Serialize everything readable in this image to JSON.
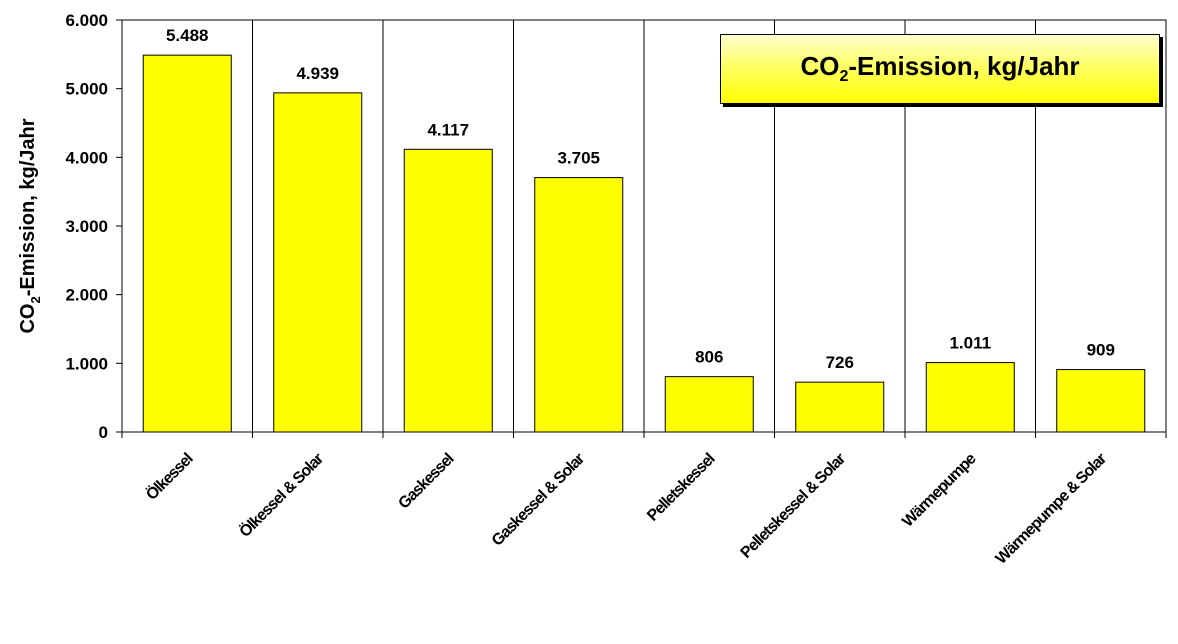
{
  "chart_data": {
    "type": "bar",
    "categories": [
      "Ölkessel",
      "Ölkessel & Solar",
      "Gaskessel",
      "Gaskessel & Solar",
      "Pelletskessel",
      "Pelletskessel & Solar",
      "Wärmepumpe",
      "Wärmepumpe & Solar"
    ],
    "values": [
      5488,
      4939,
      4117,
      3705,
      806,
      726,
      1011,
      909
    ],
    "value_labels": [
      "5.488",
      "4.939",
      "4.117",
      "3.705",
      "806",
      "726",
      "1.011",
      "909"
    ],
    "ylim": [
      0,
      6000
    ],
    "yticks": [
      0,
      1000,
      2000,
      3000,
      4000,
      5000,
      6000
    ],
    "ytick_labels": [
      "0",
      "1.000",
      "2.000",
      "3.000",
      "4.000",
      "5.000",
      "6.000"
    ],
    "ylabel_main": "CO",
    "ylabel_sub": "2",
    "ylabel_rest": "-Emission, kg/Jahr",
    "title_main": "CO",
    "title_sub": "2",
    "title_rest": "-Emission, kg/Jahr",
    "bar_color": "#ffff00",
    "grid": "vertical",
    "legend_position": "top-right"
  }
}
